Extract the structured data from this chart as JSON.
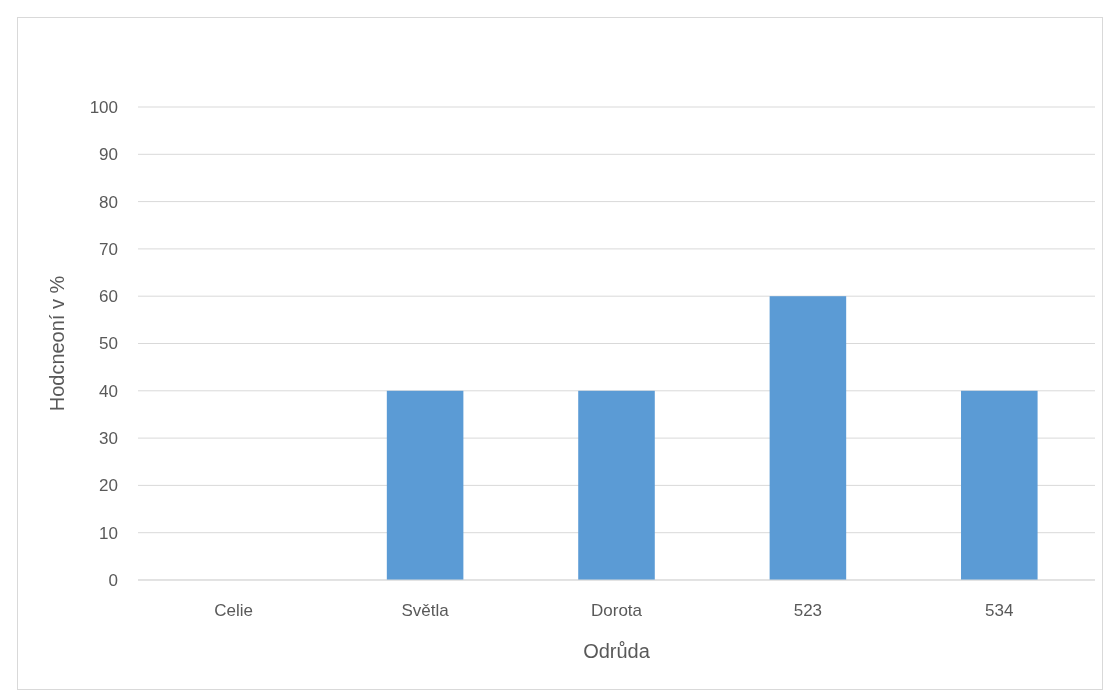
{
  "chart_data": {
    "type": "bar",
    "xlabel": "Odrůda",
    "ylabel": "Hodcneoní v %",
    "categories": [
      "Celie",
      "Světla",
      "Dorota",
      "523",
      "534"
    ],
    "values": [
      0,
      40,
      40,
      60,
      40
    ],
    "color": "#5b9bd5",
    "ylim": [
      0,
      100
    ],
    "yticks": [
      0,
      10,
      20,
      30,
      40,
      50,
      60,
      70,
      80,
      90,
      100
    ],
    "grid": "y"
  }
}
